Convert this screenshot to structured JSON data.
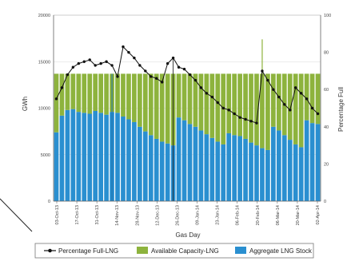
{
  "chart_data": {
    "type": "bar",
    "xlabel": "Gas Day",
    "ylabel_left": "GWh",
    "ylabel_right": "Percentage Full",
    "ylim_left": [
      0,
      20000
    ],
    "ylim_right": [
      0,
      100
    ],
    "yticks_left": [
      "0",
      "5000",
      "10000",
      "15000",
      "20000"
    ],
    "yticks_right": [
      "0",
      "20",
      "40",
      "60",
      "80",
      "100"
    ],
    "x_tick_labels": [
      "03-Oct-13",
      "17-Oct-13",
      "31-Oct-13",
      "14-Nov-13",
      "28-Nov-13",
      "12-Dec-13",
      "26-Dec-13",
      "09-Jan-14",
      "23-Jan-14",
      "06-Feb-14",
      "20-Feb-14",
      "06-Mar-14",
      "20-Mar-14",
      "02-Apr-14"
    ],
    "grid": true,
    "legend_position": "bottom",
    "series": [
      {
        "name": "Aggregate LNG Stock",
        "axis": "left",
        "color": "#2a8fd0",
        "values": [
          7400,
          9200,
          9800,
          9900,
          9600,
          9500,
          9400,
          9700,
          9500,
          9300,
          9600,
          9500,
          9100,
          8800,
          8500,
          8000,
          7500,
          7100,
          6700,
          6400,
          6200,
          6000,
          9000,
          8700,
          8300,
          8000,
          7600,
          7200,
          6800,
          6400,
          6100,
          7300,
          7100,
          7000,
          6700,
          6300,
          6000,
          5700,
          5500,
          8000,
          7600,
          7100,
          6600,
          6100,
          5800,
          8700,
          8400,
          8300
        ]
      },
      {
        "name": "Available Capacity-LNG",
        "axis": "left",
        "color": "#8db33d",
        "values": [
          6300,
          4500,
          3900,
          3800,
          4100,
          4200,
          4300,
          4000,
          4200,
          4400,
          4100,
          4200,
          4600,
          4900,
          5200,
          5700,
          6200,
          6600,
          7000,
          7300,
          7500,
          7700,
          4700,
          5000,
          5400,
          5700,
          6100,
          6500,
          6900,
          7300,
          7600,
          6400,
          6600,
          6700,
          7000,
          7400,
          7700,
          8000,
          8200,
          5700,
          6100,
          6600,
          7100,
          7600,
          7900,
          5000,
          5300,
          5400
        ]
      },
      {
        "name": "Percentage Full-LNG",
        "axis": "right",
        "color": "#111111",
        "values": [
          55,
          61,
          68,
          72,
          74,
          75,
          76,
          73,
          74,
          75,
          73,
          67,
          83,
          80,
          77,
          73,
          70,
          67,
          66,
          64,
          74,
          77,
          72,
          71,
          68,
          65,
          61,
          58,
          56,
          53,
          50,
          49,
          47,
          45,
          44,
          43,
          42,
          70,
          65,
          60,
          56,
          52,
          49,
          61,
          58,
          55,
          50,
          47
        ]
      }
    ],
    "drops": [
      {
        "x": 10,
        "type": "capacity_full"
      },
      {
        "x": 21,
        "type": "percentage_zero"
      },
      {
        "x": 37,
        "type": "capacity_spike"
      }
    ]
  },
  "legend": {
    "items": [
      {
        "label": "Percentage Full-LNG",
        "color": "#111111",
        "kind": "line-marker"
      },
      {
        "label": "Available Capacity-LNG",
        "color": "#8db33d",
        "kind": "swatch"
      },
      {
        "label": "Aggregate LNG Stock",
        "color": "#2a8fd0",
        "kind": "swatch"
      }
    ]
  }
}
